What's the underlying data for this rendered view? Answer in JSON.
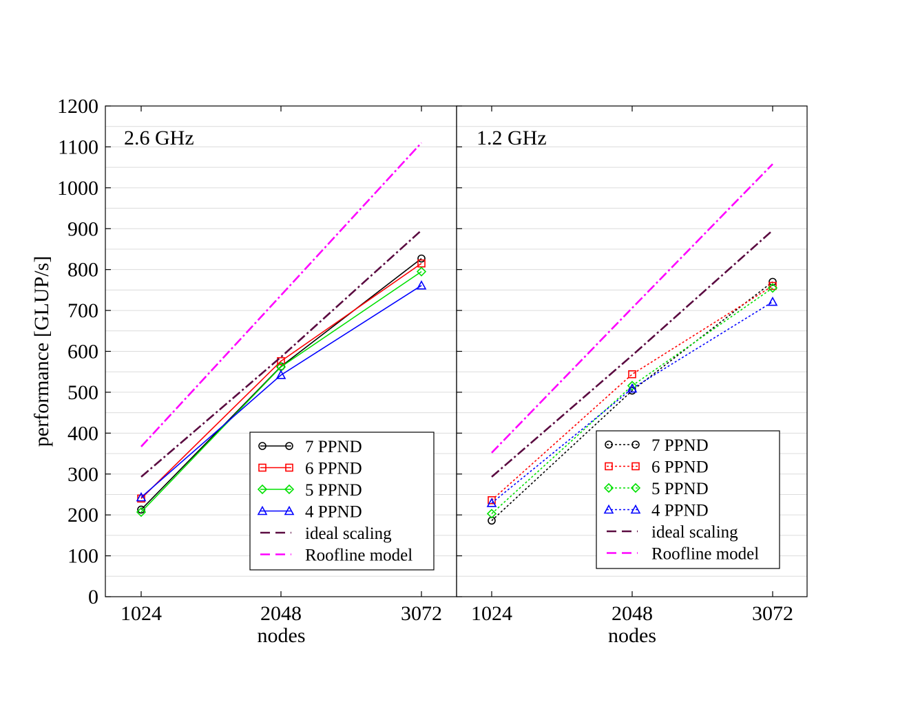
{
  "chart_data": {
    "type": "line",
    "ylabel": "performance [GLUP/s]",
    "ylim": [
      0,
      1200
    ],
    "yticks": [
      "0",
      "100",
      "200",
      "300",
      "400",
      "500",
      "600",
      "700",
      "800",
      "900",
      "1000",
      "1100",
      "1200"
    ],
    "grid": "horizontal",
    "legend_placement": "bottom-right",
    "panels": [
      {
        "title": "2.6 GHz",
        "xlabel": "nodes",
        "x": [
          1024,
          2048,
          3072
        ],
        "xticks": [
          "1024",
          "2048",
          "3072"
        ],
        "line_style": "solid",
        "series": [
          {
            "name": "7 PPND",
            "values": [
              213,
              563,
              827
            ],
            "color": "#000000",
            "marker": "circle"
          },
          {
            "name": "6 PPND",
            "values": [
              240,
              576,
              815
            ],
            "color": "#ff0000",
            "marker": "square"
          },
          {
            "name": "5 PPND",
            "values": [
              207,
              562,
              795
            ],
            "color": "#00e000",
            "marker": "diamond"
          },
          {
            "name": "4 PPND",
            "values": [
              243,
              542,
              761
            ],
            "color": "#0000ff",
            "marker": "triangle"
          },
          {
            "name": "ideal scaling",
            "values": [
              293,
              586,
              896
            ],
            "color": "#5a0a40",
            "marker": "none",
            "dash": "dashdot"
          },
          {
            "name": "Roofline model",
            "values": [
              367,
              737,
              1110
            ],
            "color": "#ff00ff",
            "marker": "none",
            "dash": "dashdot"
          }
        ]
      },
      {
        "title": "1.2 GHz",
        "xlabel": "nodes",
        "x": [
          1024,
          2048,
          3072
        ],
        "xticks": [
          "1024",
          "2048",
          "3072"
        ],
        "line_style": "dotted",
        "series": [
          {
            "name": "7 PPND",
            "values": [
              186,
              504,
              770
            ],
            "color": "#000000",
            "marker": "circle"
          },
          {
            "name": "6 PPND",
            "values": [
              236,
              544,
              760
            ],
            "color": "#ff0000",
            "marker": "square"
          },
          {
            "name": "5 PPND",
            "values": [
              203,
              516,
              755
            ],
            "color": "#00e000",
            "marker": "diamond"
          },
          {
            "name": "4 PPND",
            "values": [
              229,
              509,
              721
            ],
            "color": "#0000ff",
            "marker": "triangle"
          },
          {
            "name": "ideal scaling",
            "values": [
              293,
              590,
              896
            ],
            "color": "#5a0a40",
            "marker": "none",
            "dash": "dashdot"
          },
          {
            "name": "Roofline model",
            "values": [
              352,
              706,
              1058
            ],
            "color": "#ff00ff",
            "marker": "none",
            "dash": "dashdot"
          }
        ]
      }
    ]
  }
}
